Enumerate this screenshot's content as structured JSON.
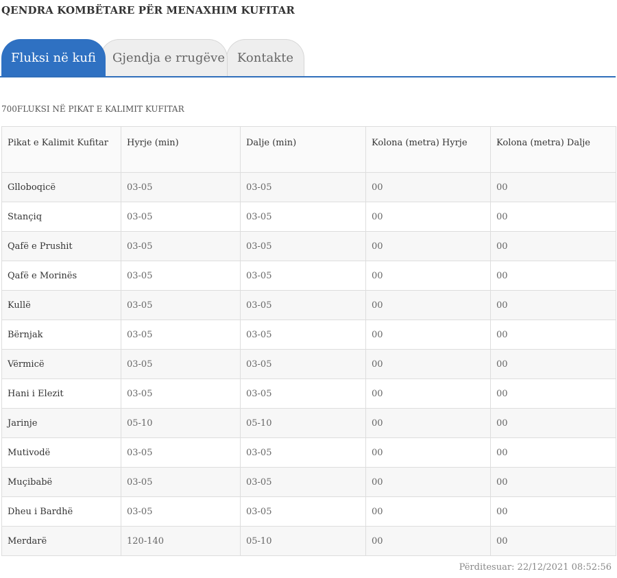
{
  "site_title": "QENDRA KOMBËTARE PËR MENAXHIM KUFITAR",
  "tabs": [
    {
      "label": "Fluksi në kufi"
    },
    {
      "label": "Gjendja e rrugëve"
    },
    {
      "label": "Kontakte"
    }
  ],
  "section_title": "700FLUKSI NË PIKAT E KALIMIT KUFITAR",
  "table": {
    "headers": [
      "Pikat e Kalimit Kufitar",
      "Hyrje (min)",
      "Dalje (min)",
      "Kolona (metra) Hyrje",
      "Kolona (metra) Dalje"
    ],
    "rows": [
      [
        "Glloboqicë",
        "03-05",
        "03-05",
        "00",
        "00"
      ],
      [
        "Stançiq",
        "03-05",
        "03-05",
        "00",
        "00"
      ],
      [
        "Qafë e Prushit",
        "03-05",
        "03-05",
        "00",
        "00"
      ],
      [
        "Qafë e Morinës",
        "03-05",
        "03-05",
        "00",
        "00"
      ],
      [
        "Kullë",
        "03-05",
        "03-05",
        "00",
        "00"
      ],
      [
        "Bërnjak",
        "03-05",
        "03-05",
        "00",
        "00"
      ],
      [
        "Vërmicë",
        "03-05",
        "03-05",
        "00",
        "00"
      ],
      [
        "Hani i Elezit",
        "03-05",
        "03-05",
        "00",
        "00"
      ],
      [
        "Jarinje",
        "05-10",
        "05-10",
        "00",
        "00"
      ],
      [
        "Mutivodë",
        "03-05",
        "03-05",
        "00",
        "00"
      ],
      [
        "Muçibabë",
        "03-05",
        "03-05",
        "00",
        "00"
      ],
      [
        "Dheu i Bardhë",
        "03-05",
        "03-05",
        "00",
        "00"
      ],
      [
        "Merdarë",
        "120-140",
        "05-10",
        "00",
        "00"
      ]
    ]
  },
  "updated": "Përditesuar: 22/12/2021 08:52:56",
  "colors": {
    "accent": "#2f71c2",
    "tab_inactive": "#eeeeee"
  }
}
